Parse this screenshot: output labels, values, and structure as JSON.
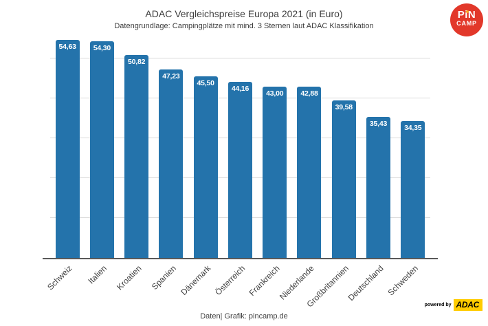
{
  "header": {
    "title": "ADAC Vergleichspreise Europa 2021 (in Euro)",
    "subtitle": "Datengrundlage: Campingplätze mit mind. 3 Sternen laut ADAC Klassifikation"
  },
  "chart_data": {
    "type": "bar",
    "title": "ADAC Vergleichspreise Europa 2021 (in Euro)",
    "subtitle": "Datengrundlage: Campingplätze mit mind. 3 Sternen laut ADAC Klassifikation",
    "categories": [
      "Schweiz",
      "Italien",
      "Kroatien",
      "Spanien",
      "Dänemark",
      "Österreich",
      "Frankreich",
      "Niederlande",
      "Großbritannien",
      "Deutschland",
      "Schweden"
    ],
    "values": [
      54.63,
      54.3,
      50.82,
      47.23,
      45.5,
      44.16,
      43.0,
      42.88,
      39.58,
      35.43,
      34.35
    ],
    "value_labels": [
      "54,63",
      "54,30",
      "50,82",
      "47,23",
      "45,50",
      "44,16",
      "43,00",
      "42,88",
      "39,58",
      "35,43",
      "34,35"
    ],
    "xlabel": "",
    "ylabel": "",
    "ylim": [
      0,
      55.2
    ],
    "gridline_values": [
      10,
      20,
      30,
      40,
      50
    ],
    "grid": "horizontal only, no y tick labels",
    "legend": "none",
    "bar_color": "#2473AB"
  },
  "footer": {
    "caption": "Daten| Grafik: pincamp.de"
  },
  "logos": {
    "pincamp": {
      "line1": "PiN",
      "line2": "CAMP",
      "circle_color": "#E2382A",
      "dot_color": "#F5A623"
    },
    "adac": {
      "powered_by": "powered by",
      "name": "ADAC",
      "box_color": "#FFCC00"
    }
  },
  "colors": {
    "bar": "#2473AB",
    "gridline": "#D9D9D9",
    "axis": "#595959",
    "text": "#3F3F3F",
    "value_label": "#FFFFFF"
  }
}
